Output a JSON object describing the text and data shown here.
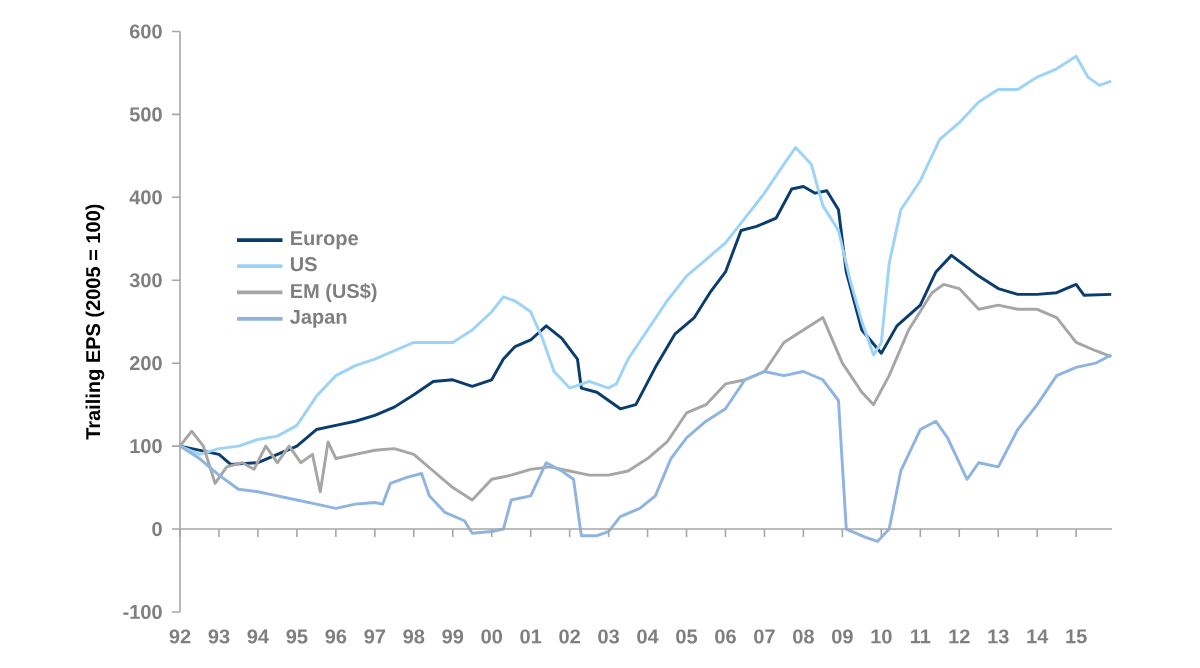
{
  "chart_data": {
    "type": "line",
    "ylabel": "Trailing EPS (2005 = 100)",
    "xlim": [
      1992,
      2015.92
    ],
    "ylim": [
      -100,
      600
    ],
    "yticks": [
      -100,
      0,
      100,
      200,
      300,
      400,
      500,
      600
    ],
    "xticks": [
      {
        "value": 1992,
        "label": "92"
      },
      {
        "value": 1993,
        "label": "93"
      },
      {
        "value": 1994,
        "label": "94"
      },
      {
        "value": 1995,
        "label": "95"
      },
      {
        "value": 1996,
        "label": "96"
      },
      {
        "value": 1997,
        "label": "97"
      },
      {
        "value": 1998,
        "label": "98"
      },
      {
        "value": 1999,
        "label": "99"
      },
      {
        "value": 2000,
        "label": "00"
      },
      {
        "value": 2001,
        "label": "01"
      },
      {
        "value": 2002,
        "label": "02"
      },
      {
        "value": 2003,
        "label": "03"
      },
      {
        "value": 2004,
        "label": "04"
      },
      {
        "value": 2005,
        "label": "05"
      },
      {
        "value": 2006,
        "label": "06"
      },
      {
        "value": 2007,
        "label": "07"
      },
      {
        "value": 2008,
        "label": "08"
      },
      {
        "value": 2009,
        "label": "09"
      },
      {
        "value": 2010,
        "label": "10"
      },
      {
        "value": 2011,
        "label": "11"
      },
      {
        "value": 2012,
        "label": "12"
      },
      {
        "value": 2013,
        "label": "13"
      },
      {
        "value": 2014,
        "label": "14"
      },
      {
        "value": 2015,
        "label": "15"
      }
    ],
    "legend": "left",
    "ref_lines": [
      {
        "axis": "y",
        "value": 0,
        "color": "#a6a6a6"
      }
    ],
    "series": [
      {
        "name": "Europe",
        "color": "#0a3d6e",
        "x": [
          1992,
          1993,
          1993.3,
          1994,
          1994.5,
          1995,
          1995.5,
          1996,
          1996.5,
          1997,
          1997.5,
          1998,
          1998.5,
          1999,
          1999.5,
          2000,
          2000.3,
          2000.6,
          2001,
          2001.4,
          2001.8,
          2002.2,
          2002.3,
          2002.7,
          2003.3,
          2003.7,
          2004.2,
          2004.7,
          2005.2,
          2005.6,
          2006,
          2006.4,
          2006.8,
          2007.3,
          2007.7,
          2008,
          2008.3,
          2008.6,
          2008.9,
          2009.1,
          2009.5,
          2010,
          2010.4,
          2011,
          2011.4,
          2011.8,
          2012.5,
          2013,
          2013.5,
          2014,
          2014.5,
          2015,
          2015.2,
          2015.9
        ],
        "values": [
          100,
          90,
          78,
          80,
          90,
          100,
          120,
          125,
          130,
          137,
          147,
          162,
          178,
          180,
          172,
          180,
          205,
          220,
          228,
          245,
          230,
          205,
          170,
          165,
          145,
          150,
          195,
          235,
          255,
          285,
          310,
          360,
          365,
          375,
          410,
          413,
          405,
          408,
          385,
          310,
          240,
          212,
          245,
          270,
          310,
          330,
          305,
          290,
          283,
          283,
          285,
          295,
          282,
          283
        ]
      },
      {
        "name": "US",
        "color": "#9dd3f7",
        "x": [
          1992,
          1992.5,
          1993,
          1993.5,
          1994,
          1994.5,
          1995,
          1995.5,
          1996,
          1996.5,
          1997,
          1997.5,
          1998,
          1998.5,
          1999,
          1999.5,
          2000,
          2000.3,
          2000.6,
          2001,
          2001.3,
          2001.6,
          2002,
          2002.5,
          2003,
          2003.2,
          2003.5,
          2004,
          2004.5,
          2005,
          2005.5,
          2006,
          2006.5,
          2007,
          2007.5,
          2007.8,
          2008.2,
          2008.5,
          2008.9,
          2009.2,
          2009.5,
          2009.8,
          2010,
          2010.2,
          2010.5,
          2011,
          2011.5,
          2012,
          2012.5,
          2013,
          2013.5,
          2014,
          2014.5,
          2015,
          2015.3,
          2015.6,
          2015.9
        ],
        "values": [
          100,
          90,
          97,
          100,
          108,
          112,
          125,
          160,
          185,
          197,
          205,
          215,
          225,
          225,
          225,
          240,
          262,
          280,
          275,
          262,
          230,
          190,
          170,
          178,
          170,
          175,
          205,
          240,
          275,
          305,
          325,
          345,
          375,
          405,
          440,
          460,
          440,
          390,
          360,
          300,
          250,
          210,
          225,
          320,
          385,
          420,
          470,
          490,
          515,
          530,
          530,
          545,
          555,
          570,
          545,
          535,
          540
        ]
      },
      {
        "name": "EM (US$)",
        "color": "#a6a6a6",
        "x": [
          1992,
          1992.3,
          1992.6,
          1992.9,
          1993.2,
          1993.6,
          1993.9,
          1994.2,
          1994.5,
          1994.8,
          1995.1,
          1995.4,
          1995.6,
          1995.8,
          1996,
          1996.5,
          1997,
          1997.5,
          1998,
          1998.5,
          1999,
          1999.5,
          2000,
          2000.5,
          2001,
          2001.5,
          2002,
          2002.5,
          2003,
          2003.5,
          2004,
          2004.5,
          2005,
          2005.5,
          2006,
          2006.5,
          2007,
          2007.5,
          2008,
          2008.5,
          2009,
          2009.5,
          2009.8,
          2010.2,
          2010.7,
          2011.3,
          2011.6,
          2012,
          2012.5,
          2013,
          2013.5,
          2014,
          2014.5,
          2015,
          2015.5,
          2015.9
        ],
        "values": [
          100,
          118,
          100,
          55,
          75,
          80,
          72,
          100,
          80,
          100,
          80,
          90,
          45,
          105,
          85,
          90,
          95,
          97,
          90,
          70,
          50,
          35,
          60,
          65,
          72,
          75,
          70,
          65,
          65,
          70,
          85,
          105,
          140,
          150,
          175,
          180,
          190,
          225,
          240,
          255,
          200,
          165,
          150,
          185,
          240,
          285,
          295,
          290,
          265,
          270,
          265,
          265,
          255,
          225,
          215,
          208
        ]
      },
      {
        "name": "Japan",
        "color": "#8fb4e0",
        "x": [
          1992,
          1992.5,
          1993,
          1993.5,
          1994,
          1994.5,
          1995,
          1995.5,
          1996,
          1996.5,
          1997,
          1997.2,
          1997.4,
          1997.8,
          1998.2,
          1998.4,
          1998.8,
          1999.3,
          1999.5,
          2000,
          2000.3,
          2000.5,
          2001,
          2001.4,
          2001.8,
          2002.1,
          2002.3,
          2002.7,
          2003,
          2003.3,
          2003.8,
          2004.2,
          2004.6,
          2005,
          2005.5,
          2006,
          2006.5,
          2007,
          2007.5,
          2008,
          2008.5,
          2008.9,
          2009.1,
          2009.6,
          2009.9,
          2010.2,
          2010.5,
          2011,
          2011.4,
          2011.7,
          2012.2,
          2012.5,
          2013,
          2013.5,
          2014,
          2014.5,
          2015,
          2015.5,
          2015.9
        ],
        "values": [
          100,
          85,
          65,
          48,
          45,
          40,
          35,
          30,
          25,
          30,
          32,
          30,
          55,
          62,
          67,
          40,
          20,
          10,
          -5,
          -3,
          0,
          35,
          40,
          80,
          70,
          60,
          -8,
          -8,
          -3,
          15,
          25,
          40,
          85,
          110,
          130,
          145,
          180,
          190,
          185,
          190,
          180,
          155,
          0,
          -10,
          -15,
          0,
          70,
          120,
          130,
          110,
          60,
          80,
          75,
          120,
          150,
          185,
          195,
          200,
          210
        ]
      }
    ]
  }
}
